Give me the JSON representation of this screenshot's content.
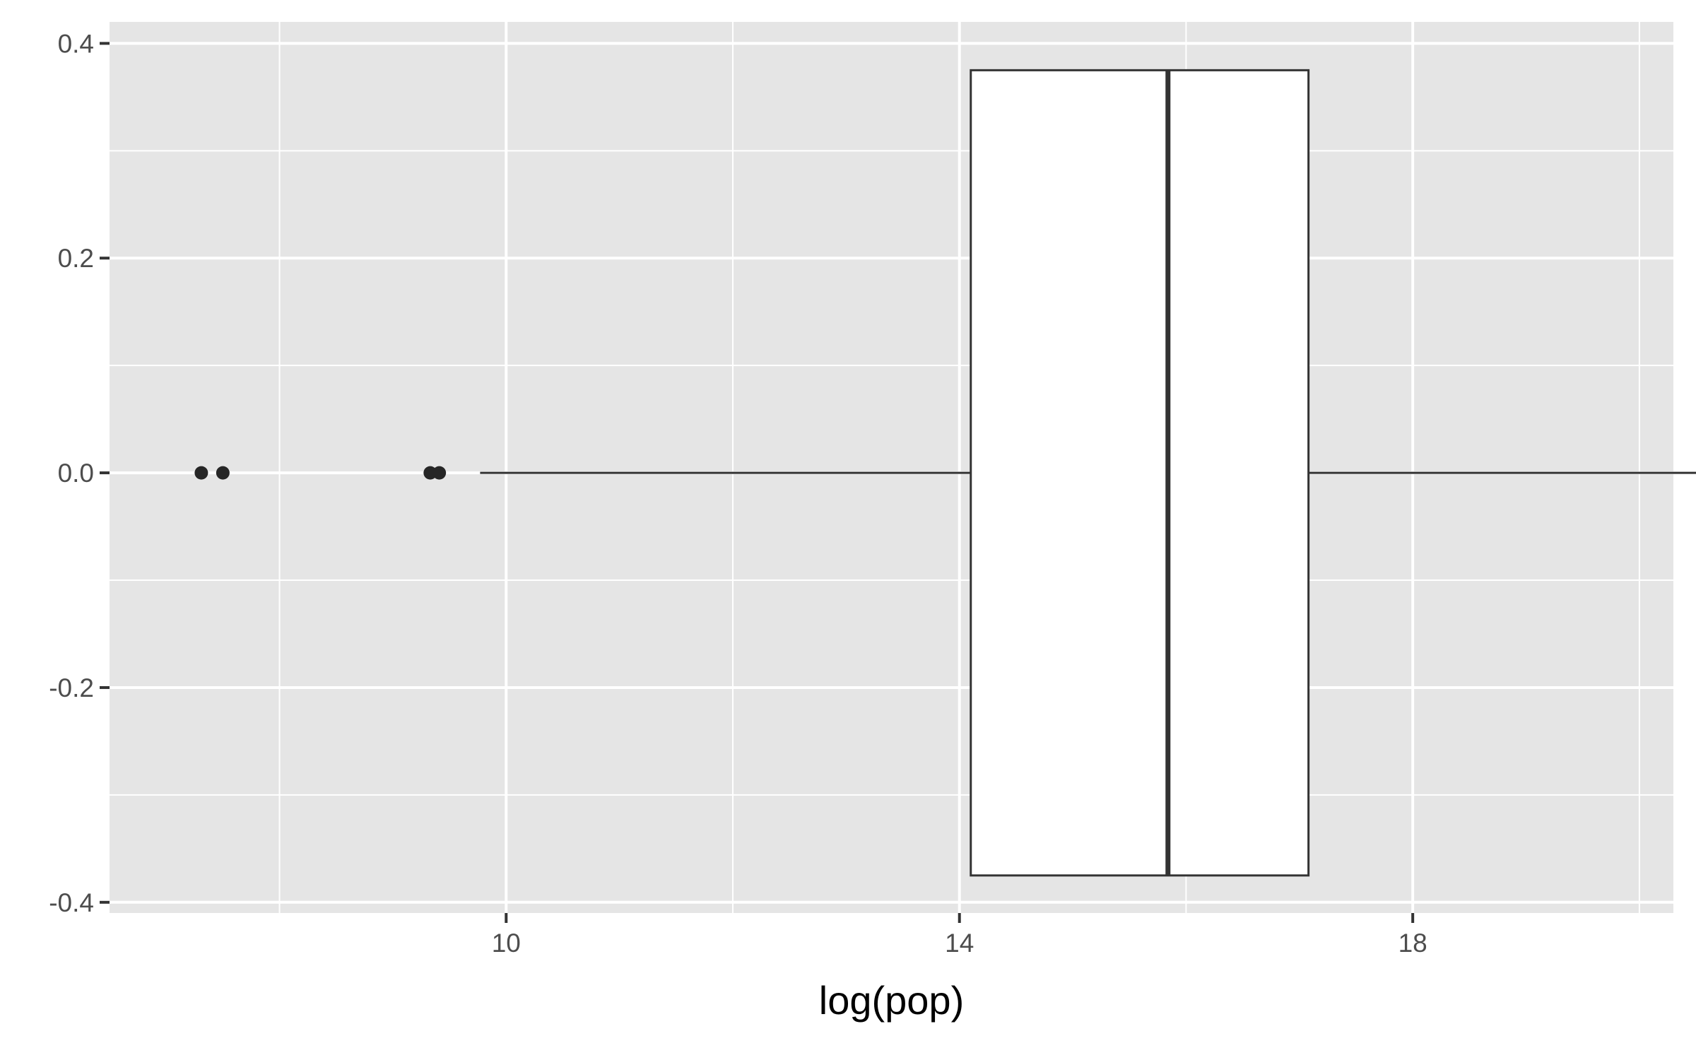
{
  "chart_data": {
    "type": "boxplot",
    "xlabel": "log(pop)",
    "ylabel": "",
    "xlim": [
      6.5,
      20.3
    ],
    "ylim": [
      -0.41,
      0.42
    ],
    "x_ticks": [
      10,
      14,
      18
    ],
    "x_tick_labels": [
      "10",
      "14",
      "18"
    ],
    "x_minor_ticks": [
      8,
      12,
      16,
      20
    ],
    "y_ticks": [
      -0.4,
      -0.2,
      0.0,
      0.2,
      0.4
    ],
    "y_tick_labels": [
      "-0.4",
      "-0.2",
      "0.0",
      "0.2",
      "0.4"
    ],
    "y_minor_ticks": [
      -0.3,
      -0.1,
      0.1,
      0.3
    ],
    "grid": true,
    "legend": "none",
    "box": {
      "y_center": 0.0,
      "y_half_width": 0.375,
      "whisker_low": 9.77,
      "q1": 14.1,
      "median": 15.84,
      "q3": 17.08,
      "whisker_high": 21.05
    },
    "outliers": [
      7.31,
      7.5,
      9.33,
      9.41
    ],
    "colors": {
      "panel": "#e5e5e5",
      "grid": "#ffffff",
      "box_fill": "#ffffff",
      "box_line": "#333333",
      "points": "#262626"
    }
  }
}
